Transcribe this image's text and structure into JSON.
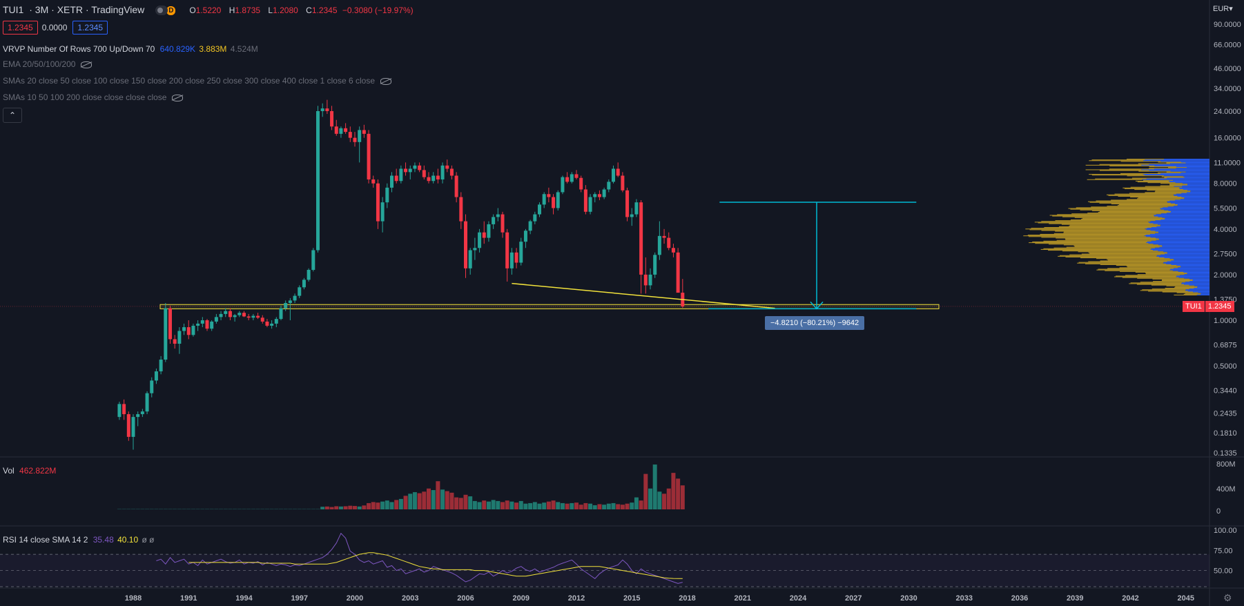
{
  "header": {
    "symbol": "TUI1",
    "interval": "3M",
    "exchange": "XETR",
    "source": "TradingView",
    "interval_badge": "D",
    "open_label": "O",
    "open": "1.5220",
    "high_label": "H",
    "high": "1.8735",
    "low_label": "L",
    "low": "1.2080",
    "close_label": "C",
    "close": "1.2345",
    "change": "−0.3080 (−19.97%)"
  },
  "price_boxes": {
    "bid": "1.2345",
    "spread": "0.0000",
    "ask": "1.2345"
  },
  "indicators": {
    "vrvp_label": "VRVP Number Of Rows 700 Up/Down 70",
    "vrvp_up": "640.829K",
    "vrvp_down": "3.883M",
    "vrvp_total": "4.524M",
    "ema": "EMA 20/50/100/200",
    "smas_long": "SMAs 20 close 50 close 100 close 150 close 200 close 250 close 300 close 400 close 1 close 6 close",
    "smas_short": "SMAs 10 50 100 200 close close close close"
  },
  "volume_pane": {
    "label": "Vol",
    "value": "462.822M",
    "axis": [
      "800M",
      "400M",
      "0"
    ]
  },
  "rsi_pane": {
    "label": "RSI 14 close SMA 14 2",
    "rsi": "35.48",
    "sma": "40.10",
    "extra": "ø ø",
    "axis": [
      "100.00",
      "75.00",
      "50.00"
    ]
  },
  "price_axis": {
    "currency": "EUR",
    "ticks": [
      "90.0000",
      "66.0000",
      "46.0000",
      "34.0000",
      "24.0000",
      "16.0000",
      "11.0000",
      "8.0000",
      "5.5000",
      "4.0000",
      "2.7500",
      "2.0000",
      "1.3750",
      "1.0000",
      "0.6875",
      "0.5000",
      "0.3440",
      "0.2435",
      "0.1810",
      "0.1335"
    ]
  },
  "last_price_tag": {
    "symbol": "TUI1",
    "price": "1.2345"
  },
  "time_axis": [
    "1988",
    "1991",
    "1994",
    "1997",
    "2000",
    "2003",
    "2006",
    "2009",
    "2012",
    "2015",
    "2018",
    "2021",
    "2024",
    "2027",
    "2030",
    "2033",
    "2036",
    "2039",
    "2042",
    "2045"
  ],
  "measure_label": "−4.8210 (−80.21%) −9642",
  "colors": {
    "up": "#26a69a",
    "down": "#f23645",
    "background": "#131722",
    "trend": "#f3e33b",
    "measure": "#00bcd4",
    "vp_up": "#2962ff",
    "vp_down": "#c9a227",
    "rsi": "#7e57c2"
  },
  "chart_data": {
    "type": "candlestick",
    "period": "quarter",
    "scale": "log",
    "ylim": [
      0.13,
      110
    ],
    "candles": [
      [
        0.23,
        0.29,
        0.22,
        0.28
      ],
      [
        0.28,
        0.3,
        0.22,
        0.24
      ],
      [
        0.24,
        0.25,
        0.16,
        0.17
      ],
      [
        0.17,
        0.24,
        0.14,
        0.23
      ],
      [
        0.23,
        0.25,
        0.2,
        0.24
      ],
      [
        0.24,
        0.26,
        0.23,
        0.25
      ],
      [
        0.25,
        0.34,
        0.24,
        0.33
      ],
      [
        0.33,
        0.42,
        0.31,
        0.4
      ],
      [
        0.4,
        0.48,
        0.38,
        0.46
      ],
      [
        0.46,
        0.58,
        0.44,
        0.55
      ],
      [
        0.55,
        1.3,
        0.53,
        1.2
      ],
      [
        1.2,
        1.25,
        0.7,
        0.75
      ],
      [
        0.75,
        0.8,
        0.65,
        0.7
      ],
      [
        0.7,
        0.9,
        0.6,
        0.85
      ],
      [
        0.85,
        0.95,
        0.8,
        0.9
      ],
      [
        0.9,
        1.0,
        0.75,
        0.8
      ],
      [
        0.8,
        0.95,
        0.78,
        0.92
      ],
      [
        0.92,
        1.0,
        0.85,
        0.95
      ],
      [
        0.95,
        1.05,
        0.9,
        1.0
      ],
      [
        1.0,
        1.02,
        0.85,
        0.88
      ],
      [
        0.88,
        1.0,
        0.85,
        0.98
      ],
      [
        0.98,
        1.1,
        0.95,
        1.05
      ],
      [
        1.05,
        1.15,
        1.0,
        1.1
      ],
      [
        1.1,
        1.2,
        1.05,
        1.15
      ],
      [
        1.15,
        1.2,
        1.0,
        1.05
      ],
      [
        1.05,
        1.1,
        0.98,
        1.08
      ],
      [
        1.08,
        1.15,
        1.05,
        1.12
      ],
      [
        1.12,
        1.15,
        1.05,
        1.06
      ],
      [
        1.06,
        1.1,
        1.0,
        1.04
      ],
      [
        1.04,
        1.1,
        1.0,
        1.07
      ],
      [
        1.07,
        1.12,
        1.02,
        1.04
      ],
      [
        1.04,
        1.08,
        0.95,
        0.98
      ],
      [
        0.98,
        1.02,
        0.9,
        0.92
      ],
      [
        0.92,
        1.0,
        0.88,
        0.95
      ],
      [
        0.95,
        1.05,
        0.9,
        1.02
      ],
      [
        1.02,
        1.25,
        1.0,
        1.2
      ],
      [
        1.2,
        1.35,
        1.15,
        1.3
      ],
      [
        1.3,
        1.4,
        1.0,
        1.35
      ],
      [
        1.35,
        1.5,
        1.3,
        1.45
      ],
      [
        1.45,
        1.7,
        1.4,
        1.65
      ],
      [
        1.65,
        1.9,
        1.6,
        1.85
      ],
      [
        1.85,
        2.2,
        1.8,
        2.15
      ],
      [
        2.15,
        3.0,
        2.1,
        2.9
      ],
      [
        2.9,
        26.0,
        2.8,
        24.0
      ],
      [
        24.0,
        27.0,
        22.0,
        25.0
      ],
      [
        25.0,
        28.5,
        23.0,
        24.0
      ],
      [
        24.0,
        26.0,
        18.0,
        19.0
      ],
      [
        19.0,
        21.0,
        16.5,
        17.0
      ],
      [
        17.0,
        19.0,
        16.0,
        18.5
      ],
      [
        18.5,
        20.0,
        17.0,
        17.5
      ],
      [
        17.5,
        19.0,
        15.0,
        16.0
      ],
      [
        16.0,
        17.5,
        14.0,
        15.0
      ],
      [
        15.0,
        19.0,
        11.0,
        18.0
      ],
      [
        18.0,
        19.5,
        16.0,
        17.0
      ],
      [
        17.0,
        18.0,
        8.0,
        8.5
      ],
      [
        8.5,
        9.0,
        7.5,
        8.0
      ],
      [
        8.0,
        8.5,
        4.0,
        4.5
      ],
      [
        4.5,
        6.5,
        3.8,
        6.0
      ],
      [
        6.0,
        8.0,
        5.5,
        7.5
      ],
      [
        7.5,
        9.5,
        7.0,
        9.0
      ],
      [
        9.0,
        10.0,
        8.0,
        8.3
      ],
      [
        8.3,
        10.5,
        8.0,
        10.0
      ],
      [
        10.0,
        11.0,
        9.0,
        9.5
      ],
      [
        9.5,
        10.5,
        8.5,
        10.0
      ],
      [
        10.0,
        11.0,
        9.5,
        10.5
      ],
      [
        10.5,
        11.0,
        9.5,
        9.8
      ],
      [
        9.8,
        10.5,
        8.5,
        8.8
      ],
      [
        8.8,
        9.5,
        8.0,
        8.3
      ],
      [
        8.3,
        9.5,
        8.0,
        9.0
      ],
      [
        9.0,
        10.0,
        8.0,
        8.5
      ],
      [
        8.5,
        11.0,
        8.0,
        10.5
      ],
      [
        10.5,
        11.5,
        9.5,
        10.0
      ],
      [
        10.0,
        10.5,
        8.5,
        9.0
      ],
      [
        9.0,
        9.5,
        6.0,
        6.5
      ],
      [
        6.5,
        7.0,
        4.0,
        4.5
      ],
      [
        4.5,
        5.0,
        1.9,
        2.2
      ],
      [
        2.2,
        3.0,
        2.0,
        2.9
      ],
      [
        2.9,
        3.5,
        2.5,
        3.0
      ],
      [
        3.0,
        4.0,
        2.8,
        3.8
      ],
      [
        3.8,
        4.5,
        3.2,
        3.5
      ],
      [
        3.5,
        4.5,
        3.3,
        4.3
      ],
      [
        4.3,
        5.0,
        4.0,
        4.8
      ],
      [
        4.8,
        5.5,
        4.5,
        5.0
      ],
      [
        5.0,
        5.2,
        3.5,
        3.8
      ],
      [
        3.8,
        4.0,
        1.8,
        2.2
      ],
      [
        2.2,
        3.0,
        2.0,
        2.8
      ],
      [
        2.8,
        3.0,
        2.2,
        2.4
      ],
      [
        2.4,
        3.5,
        2.3,
        3.3
      ],
      [
        3.3,
        4.0,
        3.0,
        3.9
      ],
      [
        3.9,
        4.6,
        3.7,
        4.5
      ],
      [
        4.5,
        5.2,
        4.3,
        5.0
      ],
      [
        5.0,
        6.0,
        4.8,
        5.8
      ],
      [
        5.8,
        7.0,
        5.5,
        6.8
      ],
      [
        6.8,
        7.5,
        6.0,
        6.5
      ],
      [
        6.5,
        6.8,
        5.0,
        5.5
      ],
      [
        5.5,
        7.2,
        5.3,
        7.0
      ],
      [
        7.0,
        9.0,
        6.8,
        8.8
      ],
      [
        8.8,
        9.5,
        8.0,
        8.2
      ],
      [
        8.2,
        9.5,
        8.0,
        9.2
      ],
      [
        9.2,
        9.8,
        8.5,
        8.7
      ],
      [
        8.7,
        9.0,
        7.0,
        7.3
      ],
      [
        7.3,
        7.8,
        5.0,
        5.2
      ],
      [
        5.2,
        6.8,
        5.0,
        6.5
      ],
      [
        6.5,
        7.0,
        6.0,
        6.8
      ],
      [
        6.8,
        7.2,
        6.2,
        6.5
      ],
      [
        6.5,
        7.5,
        6.3,
        7.3
      ],
      [
        7.3,
        8.5,
        7.0,
        8.2
      ],
      [
        8.2,
        10.5,
        8.0,
        10.0
      ],
      [
        10.0,
        11.0,
        8.8,
        9.0
      ],
      [
        9.0,
        9.5,
        7.0,
        7.2
      ],
      [
        7.2,
        7.5,
        4.5,
        4.8
      ],
      [
        4.8,
        5.5,
        4.2,
        5.0
      ],
      [
        5.0,
        6.3,
        4.8,
        6.0
      ],
      [
        6.0,
        6.2,
        1.5,
        2.0
      ],
      [
        2.0,
        2.6,
        1.5,
        1.7
      ],
      [
        1.7,
        2.2,
        1.6,
        2.0
      ],
      [
        2.0,
        2.8,
        1.9,
        2.7
      ],
      [
        2.7,
        4.5,
        2.5,
        3.6
      ],
      [
        3.6,
        4.0,
        3.2,
        3.5
      ],
      [
        3.5,
        3.8,
        2.9,
        3.0
      ],
      [
        3.0,
        3.2,
        2.6,
        2.8
      ],
      [
        2.8,
        3.0,
        1.8,
        1.52
      ],
      [
        1.52,
        1.8735,
        1.208,
        1.2345
      ]
    ],
    "volume": [
      0,
      0,
      0,
      0,
      0,
      0,
      0,
      0,
      0,
      0,
      0,
      0,
      0,
      0,
      0,
      0,
      0,
      0,
      0,
      0,
      0,
      0,
      0,
      0,
      0,
      0,
      0,
      0,
      0,
      0,
      0,
      0,
      0,
      0,
      0,
      0,
      0,
      0,
      0,
      0,
      0,
      0,
      0,
      0,
      50,
      55,
      45,
      60,
      55,
      60,
      70,
      65,
      55,
      75,
      120,
      140,
      130,
      150,
      170,
      140,
      180,
      200,
      260,
      300,
      330,
      310,
      340,
      400,
      370,
      540,
      380,
      350,
      320,
      230,
      220,
      280,
      250,
      160,
      140,
      170,
      150,
      180,
      160,
      140,
      170,
      150,
      130,
      160,
      110,
      120,
      140,
      110,
      130,
      150,
      170,
      140,
      120,
      110,
      120,
      130,
      90,
      120,
      110,
      80,
      100,
      90,
      110,
      120,
      100,
      90,
      110,
      130,
      230,
      170,
      680,
      400,
      860,
      340,
      300,
      400,
      700,
      590,
      460
    ],
    "rsi": [
      62,
      64,
      58,
      66,
      60,
      62,
      64,
      58,
      60,
      56,
      63,
      58,
      60,
      62,
      64,
      61,
      59,
      60,
      63,
      58,
      60,
      59,
      61,
      57,
      60,
      58,
      56,
      58,
      57,
      55,
      57,
      56,
      58,
      60,
      62,
      64,
      66,
      70,
      76,
      84,
      96,
      90,
      74,
      70,
      63,
      60,
      62,
      58,
      60,
      62,
      54,
      56,
      50,
      52,
      46,
      48,
      50,
      52,
      48,
      50,
      55,
      53,
      51,
      49,
      47,
      44,
      40,
      36,
      38,
      42,
      46,
      45,
      48,
      43,
      46,
      50,
      47,
      49,
      53,
      55,
      51,
      49,
      52,
      48,
      50,
      52,
      54,
      57,
      59,
      61,
      63,
      58,
      52,
      48,
      44,
      40,
      46,
      50,
      53,
      55,
      57,
      63,
      58,
      50,
      46,
      52,
      48,
      46,
      44,
      42,
      40,
      38,
      36,
      34,
      35.48
    ],
    "rsi_sma": [
      60,
      60,
      60,
      60,
      60,
      60,
      60,
      60,
      60,
      60,
      60,
      60,
      60,
      60,
      60,
      60,
      59,
      59,
      59,
      59,
      59,
      59,
      59,
      58,
      58,
      58,
      58,
      58,
      58,
      58,
      58,
      59,
      60,
      62,
      64,
      66,
      68,
      70,
      71,
      72,
      72,
      71,
      70,
      69,
      67,
      65,
      63,
      61,
      59,
      57,
      55,
      54,
      53,
      52,
      52,
      51,
      51,
      51,
      51,
      51,
      51,
      51,
      50,
      50,
      50,
      49,
      48,
      47,
      46,
      45,
      44,
      43,
      43,
      43,
      44,
      45,
      46,
      47,
      48,
      49,
      50,
      51,
      52,
      53,
      54,
      55,
      55,
      55,
      55,
      55,
      54,
      53,
      52,
      51,
      50,
      49,
      48,
      47,
      46,
      45,
      44,
      43,
      42,
      41,
      40.5,
      40.2,
      40.1,
      40.1
    ],
    "trendline": {
      "from_date": "2008.5",
      "from_price": 1.75,
      "to_date": "2022.75",
      "to_price": 1.2
    },
    "support_zone": [
      1.19,
      1.27
    ],
    "measure": {
      "from": 6.01,
      "to": 1.19,
      "from_date": "2019.75",
      "to_date": "2025.75"
    }
  }
}
